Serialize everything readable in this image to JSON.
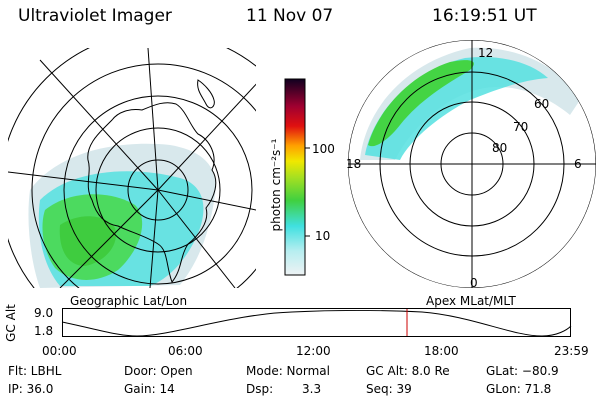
{
  "header": {
    "instrument": "Ultraviolet Imager",
    "date": "11 Nov 07",
    "time": "16:19:51 UT"
  },
  "colorbar": {
    "unit_label": "photon cm⁻²s⁻¹",
    "ticks": [
      "100",
      "10"
    ],
    "scale": "log"
  },
  "left_map": {
    "label": "Geographic Lat/Lon"
  },
  "right_map": {
    "label": "Apex MLat/MLT",
    "mlt_labels": {
      "top": "12",
      "left": "18",
      "right": "6",
      "bottom": "0"
    },
    "lat_labels": [
      "60",
      "70",
      "80"
    ]
  },
  "altitude_plot": {
    "ylabel": "GC Alt",
    "yticks": [
      "9.0",
      "1.8"
    ],
    "xticks": [
      "00:00",
      "06:00",
      "12:00",
      "18:00",
      "23:59"
    ],
    "current_marker_time": "16:19:51",
    "marker_color": "#cc0000"
  },
  "info": {
    "flt": "Flt: LBHL",
    "ip": "IP: 36.0",
    "door": "Door: Open",
    "gain": "Gain: 14",
    "mode": "Mode: Normal",
    "dsp_label": "Dsp:",
    "dsp_value": "3.3",
    "gc_alt": "GC Alt: 8.0 Re",
    "seq": "Seq: 39",
    "glat": "GLat: −80.9",
    "glon": "GLon:  71.8"
  },
  "colors": {
    "low": "#e6ecee",
    "cyan": "#40e0e0",
    "green": "#40d040",
    "lime": "#a8e020",
    "yellow": "#f0e800",
    "orange": "#ffa000",
    "red": "#e01010",
    "dark": "#280030"
  }
}
